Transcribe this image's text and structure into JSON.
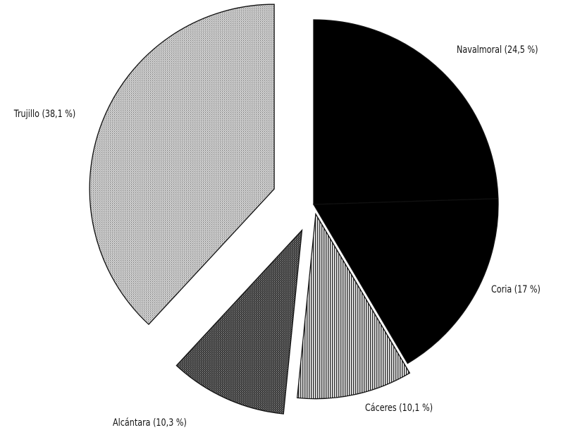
{
  "chart_data": {
    "type": "pie",
    "title": "",
    "exploded": true,
    "slices": [
      {
        "name": "Navalmoral",
        "value": 24.5,
        "label": "Navalmoral (24,5 %)",
        "fill": "solid-black",
        "color": "#000000"
      },
      {
        "name": "Coria",
        "value": 17.0,
        "label": "Coria (17 %)",
        "fill": "solid-black",
        "color": "#000000"
      },
      {
        "name": "Cáceres",
        "value": 10.1,
        "label": "Cáceres (10,1 %)",
        "fill": "vertical-stripes",
        "color": "#6e6e6e"
      },
      {
        "name": "Alcántara",
        "value": 10.3,
        "label": "Alcántara (10,3 %)",
        "fill": "dark-stipple",
        "color": "#3c3c3c"
      },
      {
        "name": "Trujillo",
        "value": 38.1,
        "label": "Trujillo (38,1 %)",
        "fill": "light-stipple",
        "color": "#b4b4b4"
      }
    ]
  }
}
